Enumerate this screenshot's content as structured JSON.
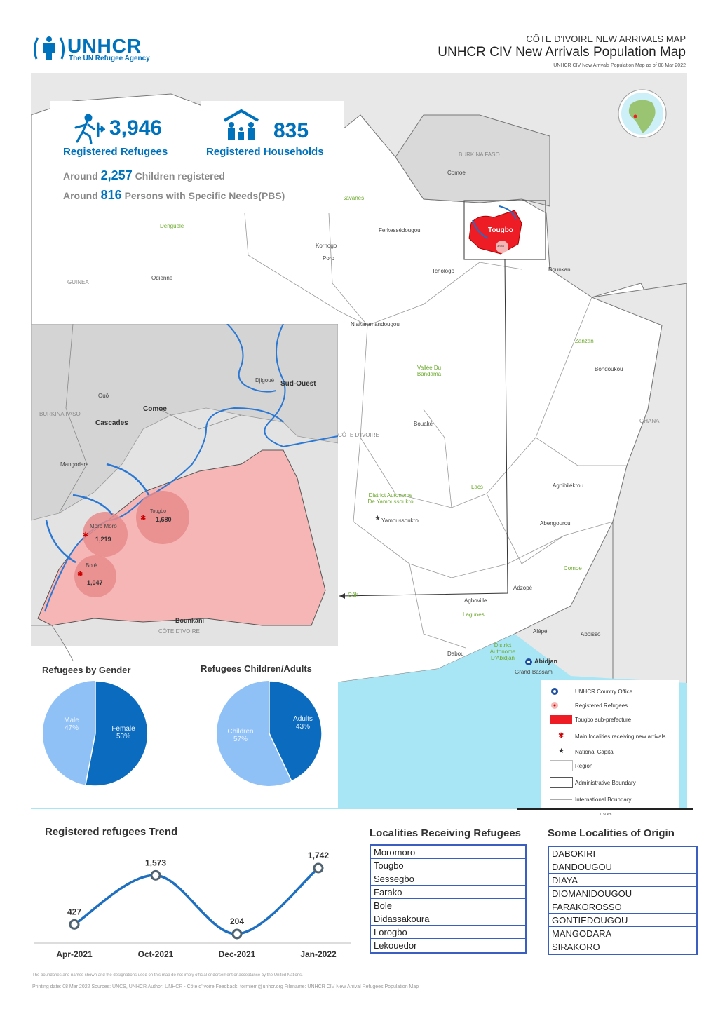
{
  "header": {
    "org_name": "UNHCR",
    "org_tagline": "The UN Refugee Agency",
    "small_title": "CÔTE D'IVOIRE NEW ARRIVALS MAP",
    "title": "UNHCR CIV New Arrivals Population Map",
    "subtitle": "UNHCR CIV New Arrivals Population Map as of 08 Mar 2022"
  },
  "stats": {
    "refugees_value": "3,946",
    "refugees_label": "Registered Refugees",
    "households_value": "835",
    "households_label": "Registered Households",
    "children_prefix": "Around",
    "children_value": "2,257",
    "children_label": "Children registered",
    "psn_prefix": "Around",
    "psn_value": "816",
    "psn_label": "Persons with Specific Needs(PBS)"
  },
  "map_labels": {
    "burkina": "BURKINA FASO",
    "comoe_top": "Comoe",
    "savanes": "Savanes",
    "tougbo": "Tougbo",
    "tougbo_small": "3,946",
    "denguele": "Denguele",
    "korhogo": "Korhogo",
    "poro": "Poro",
    "ferkessedougou": "Ferkessédougou",
    "tchologo": "Tchologo",
    "bounkani": "Bounkani",
    "guinea": "GUINEA",
    "odienne": "Odienne",
    "niakaramandougou": "Niakaramandougou",
    "vallee": "Vallée Du Bandama",
    "zanzan": "Zanzan",
    "bondoukou": "Bondoukou",
    "ghana": "GHANA",
    "bouake": "Bouaké",
    "cote_divoire": "CÔTE D'IVOIRE",
    "lacs": "Lacs",
    "agnibilekrou": "Agnibilékrou",
    "district_yam": "District Autonome De Yamoussoukro",
    "yamoussoukro": "Yamoussoukro",
    "abengourou": "Abengourou",
    "comoe_right": "Comoe",
    "adzope": "Adzopé",
    "goh": "Gôh",
    "agboville": "Agboville",
    "lagunes": "Lagunes",
    "alepe": "Alépé",
    "aboisso": "Aboisso",
    "dabou": "Dabou",
    "district_abj": "District Autonome D'Abidjan",
    "abidjan": "Abidjan",
    "grand_bassam": "Grand-Bassam"
  },
  "inset": {
    "djigoue": "Djigoué",
    "sud_ouest": "Sud-Ouest",
    "oue": "Ouô",
    "comoe": "Comoe",
    "burkina": "BURKINA FASO",
    "cascades": "Cascades",
    "mangodara": "Mangodara",
    "tougbo_name": "Tougbo",
    "tougbo_val": "1,680",
    "moromoro_name": "Moro Moro",
    "moromoro_val": "1,219",
    "bole_name": "Bolé",
    "bole_val": "1,047",
    "bounkani": "Bounkani",
    "cote": "CÔTE D'IVOIRE"
  },
  "gender_chart": {
    "title": "Refugees by Gender",
    "male_label": "Male",
    "male_pct": "47%",
    "female_label": "Female",
    "female_pct": "53%"
  },
  "age_chart": {
    "title": "Refugees Children/Adults",
    "children_label": "Children",
    "children_pct": "57%",
    "adults_label": "Adults",
    "adults_pct": "43%"
  },
  "legend": {
    "items": [
      "UNHCR Country Office",
      "Registered Refugees",
      "Tougbo sub-prefecture",
      "Main localities receiving new arrivals",
      "National Capital",
      "Region",
      "Administrative Boundary",
      "International Boundary"
    ],
    "scale": "0   50km"
  },
  "chart_data": {
    "type": "line",
    "title": "Registered refugees Trend",
    "categories": [
      "Apr-2021",
      "Oct-2021",
      "Dec-2021",
      "Jan-2022"
    ],
    "values": [
      427,
      1573,
      204,
      1742
    ],
    "value_labels": [
      "427",
      "1,573",
      "204",
      "1,742"
    ]
  },
  "localities": {
    "title": "Localities Receiving Refugees",
    "items": [
      "Moromoro",
      "Tougbo",
      "Sessegbo",
      "Farako",
      "Bole",
      "Didassakoura",
      "Lorogbo",
      "Lekouedor"
    ]
  },
  "origins": {
    "title": "Some Localities of Origin",
    "items": [
      "DABOKIRI",
      "DANDOUGOU",
      "DIAYA",
      "DIOMANIDOUGOU",
      "FARAKOROSSO",
      "GONTIEDOUGOU",
      "MANGODARA",
      "SIRAKORO"
    ]
  },
  "footer": {
    "disclaimer": "The boundaries and names shown and the designations used on this map do not imply official endorsement or acceptance by the United Nations.",
    "credits": "Printing date: 08 Mar 2022    Sources: UNCS, UNHCR    Author: UNHCR - Côte d'Ivoire    Feedback: tormiem@unhcr.org    Filename: UNHCR CIV New Arrival Refugees Population Map"
  },
  "colors": {
    "unhcr_blue": "#0072bc",
    "tougbo_red": "#ee1c25",
    "inset_pink": "#f7b6b6",
    "sea": "#a9e6f5",
    "female_blue": "#0b6cbf",
    "male_lightblue": "#8fc1f7"
  }
}
